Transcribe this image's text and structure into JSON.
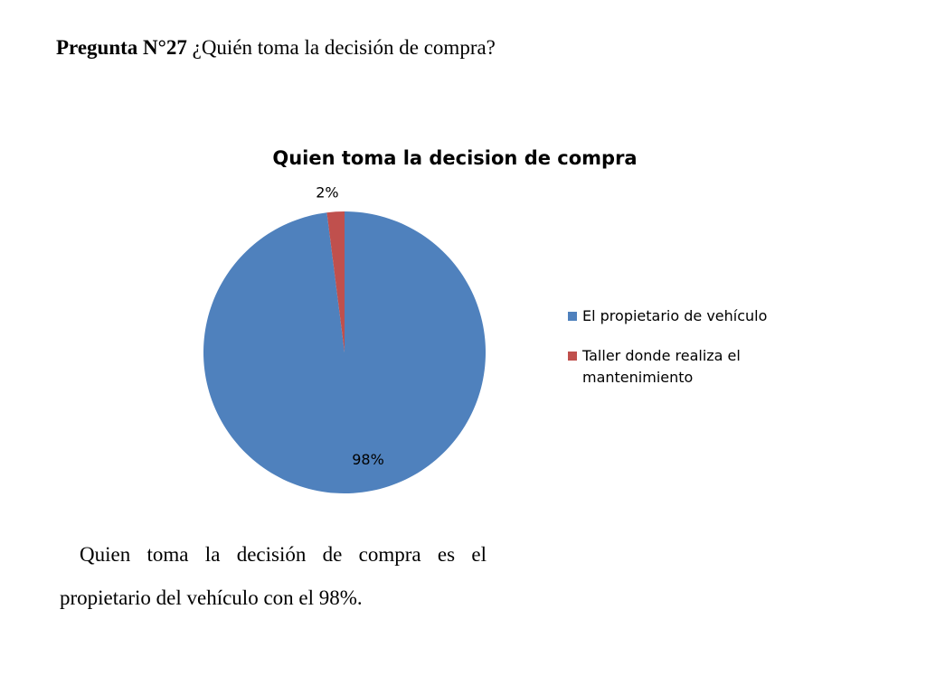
{
  "question": {
    "number": "Pregunta N°27",
    "text": "¿Quién toma la decisión de compra?"
  },
  "chart_data": {
    "type": "pie",
    "title": "Quien toma la decision de compra",
    "categories": [
      "El propietario de vehículo",
      "Taller donde realiza el mantenimiento"
    ],
    "values": [
      98,
      2
    ],
    "labels": [
      "98%",
      "2%"
    ],
    "colors": [
      "#4F81BD",
      "#C0504D"
    ],
    "legend_position": "right"
  },
  "conclusion": "Quien toma la decisión de compra es el propietario del vehículo con el 98%."
}
